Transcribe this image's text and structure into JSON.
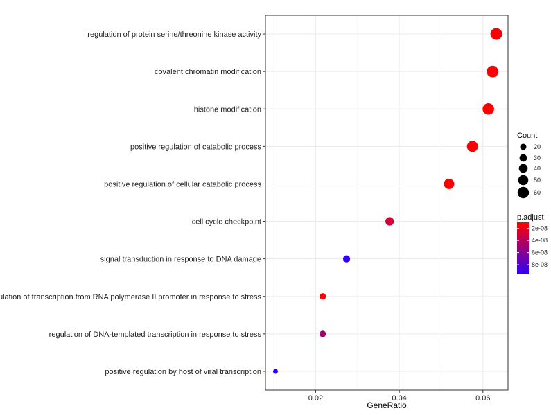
{
  "chart_data": {
    "type": "scatter",
    "title": "",
    "xlabel": "GeneRatio",
    "ylabel": "",
    "xlim": [
      0.008,
      0.066
    ],
    "x_ticks": [
      0.02,
      0.04,
      0.06
    ],
    "x_tick_labels": [
      "0.02",
      "0.04",
      "0.06"
    ],
    "grid": true,
    "legend_position": "right",
    "points": [
      {
        "term": "regulation of protein serine/threonine kinase activity",
        "gene_ratio": 0.0632,
        "count": 63,
        "p_adjust": 1.2e-08
      },
      {
        "term": "covalent chromatin modification",
        "gene_ratio": 0.0623,
        "count": 62,
        "p_adjust": 1e-08
      },
      {
        "term": "histone modification",
        "gene_ratio": 0.0613,
        "count": 61,
        "p_adjust": 1e-08
      },
      {
        "term": "positive regulation of catabolic process",
        "gene_ratio": 0.0575,
        "count": 57,
        "p_adjust": 1.1e-08
      },
      {
        "term": "positive regulation of cellular catabolic process",
        "gene_ratio": 0.0519,
        "count": 52,
        "p_adjust": 1e-08
      },
      {
        "term": "cell cycle checkpoint",
        "gene_ratio": 0.0377,
        "count": 38,
        "p_adjust": 2.8e-08
      },
      {
        "term": "signal transduction in response to DNA damage",
        "gene_ratio": 0.0274,
        "count": 27,
        "p_adjust": 9.4e-08
      },
      {
        "term": "regulation of transcription from RNA polymerase II promoter in response to stress",
        "gene_ratio": 0.0217,
        "count": 22,
        "p_adjust": 1e-08
      },
      {
        "term": "regulation of DNA-templated transcription in response to stress",
        "gene_ratio": 0.0217,
        "count": 22,
        "p_adjust": 4.8e-08
      },
      {
        "term": "positive regulation by host of viral transcription",
        "gene_ratio": 0.0104,
        "count": 10,
        "p_adjust": 9.6e-08
      }
    ],
    "size_legend": {
      "title": "Count",
      "values": [
        20,
        30,
        40,
        50,
        60
      ],
      "labels": [
        "20",
        "30",
        "40",
        "50",
        "60"
      ]
    },
    "color_legend": {
      "title": "p.adjust",
      "range": [
        1e-08,
        9.6e-08
      ],
      "ticks": [
        2e-08,
        4e-08,
        6e-08,
        8e-08
      ],
      "labels": [
        "2e-08",
        "4e-08",
        "6e-08",
        "8e-08"
      ],
      "color_low": "#ff0000",
      "color_high": "#2b00ff"
    }
  }
}
